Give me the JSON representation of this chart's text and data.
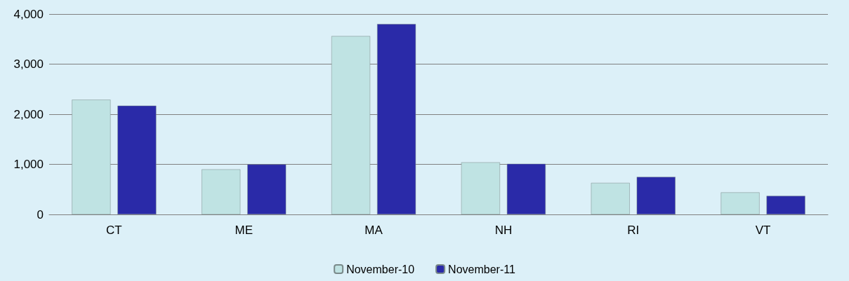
{
  "chart_data": {
    "type": "bar",
    "categories": [
      "CT",
      "ME",
      "MA",
      "NH",
      "RI",
      "VT"
    ],
    "series": [
      {
        "name": "November-10",
        "color": "#bfe3e3",
        "values": [
          2290,
          900,
          3560,
          1040,
          630,
          440
        ]
      },
      {
        "name": "November-11",
        "color": "#2a2aa8",
        "values": [
          2170,
          1000,
          3800,
          1010,
          750,
          370
        ]
      }
    ],
    "ylim": [
      0,
      4000
    ],
    "yticks": [
      {
        "value": 0,
        "label": "0"
      },
      {
        "value": 1000,
        "label": "1,000"
      },
      {
        "value": 2000,
        "label": "2,000"
      },
      {
        "value": 3000,
        "label": "3,000"
      },
      {
        "value": 4000,
        "label": "4,000"
      }
    ],
    "grid": "y",
    "legend": "bottom"
  }
}
